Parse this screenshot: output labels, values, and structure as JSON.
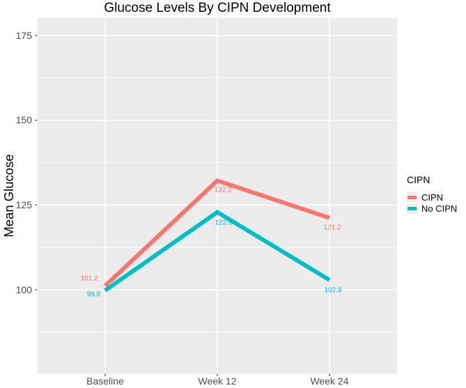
{
  "title": "Glucose Levels By CIPN Development",
  "chart_data": {
    "type": "line",
    "title": "Glucose Levels By CIPN Development",
    "xlabel": "",
    "ylabel": "Mean Glucose",
    "categories": [
      "Baseline",
      "Week 12",
      "Week 24"
    ],
    "series": [
      {
        "name": "CIPN",
        "color": "#F8766D",
        "values": [
          101.2,
          132.2,
          121.2
        ],
        "point_labels": [
          "101.2",
          "132.2",
          "121.2"
        ]
      },
      {
        "name": "No CIPN",
        "color": "#00BFC4",
        "values": [
          99.8,
          122.9,
          102.9
        ],
        "point_labels": [
          "99.8",
          "122.9",
          "102.9"
        ]
      }
    ],
    "y_axis": {
      "tick_values": [
        100,
        125,
        150,
        175
      ],
      "tick_labels": [
        "100",
        "125",
        "150",
        "175"
      ],
      "minor_tick_values": [
        87.5,
        112.5,
        137.5,
        162.5
      ],
      "range": [
        75,
        180
      ]
    },
    "legend": {
      "title": "CIPN",
      "position": "right",
      "entries": [
        {
          "label": "CIPN",
          "color": "#F8766D"
        },
        {
          "label": "No CIPN",
          "color": "#00BFC4"
        }
      ]
    },
    "grid": true,
    "colors": {
      "panel_background": "#EBEBEB",
      "gridline": "#FFFFFF",
      "axis_text": "#4D4D4D",
      "axis_tick": "#333333",
      "text": "#000000"
    }
  }
}
